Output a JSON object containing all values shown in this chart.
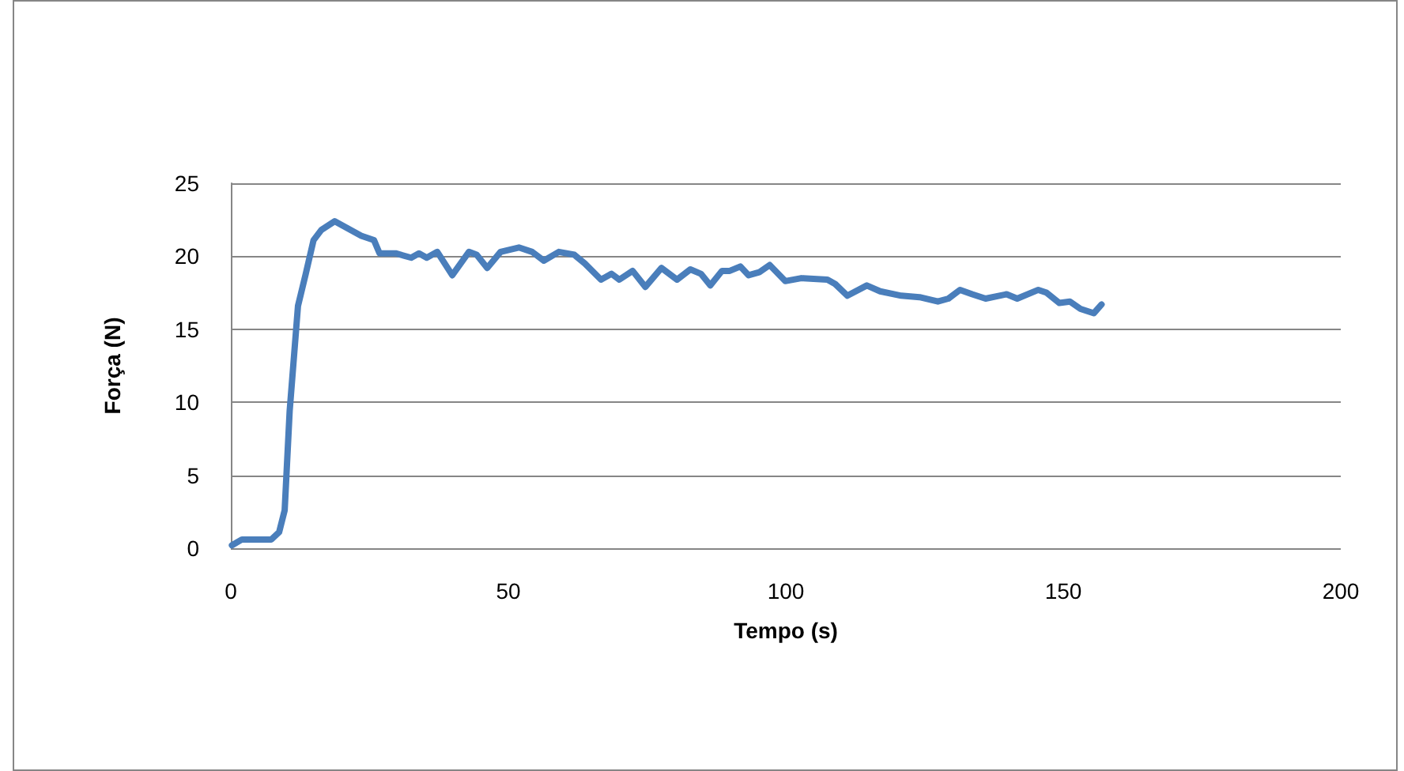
{
  "chart_data": {
    "type": "line",
    "xlabel": "Tempo (s)",
    "ylabel": "Força (N)",
    "xlim": [
      0,
      200
    ],
    "xticks": [
      0,
      50,
      100,
      150,
      200
    ],
    "ylim": [
      0,
      25
    ],
    "yticks": [
      0,
      5,
      10,
      15,
      20,
      25
    ],
    "grid": "y",
    "marker": "none",
    "line_style": "solid",
    "series": [
      {
        "color": "#4a7ebb",
        "x": [
          0.2,
          2,
          7.3,
          8.7,
          9.7,
          10.6,
          12.1,
          13.5,
          14.9,
          16.3,
          18.7,
          21.1,
          23.5,
          25.8,
          26.8,
          29.7,
          32.5,
          33.9,
          35.3,
          37.2,
          39.9,
          42.9,
          44.3,
          46.2,
          48.6,
          51.9,
          54.3,
          56.4,
          59.1,
          61.9,
          63.8,
          66.7,
          68.6,
          70,
          72.4,
          74.7,
          77.6,
          80.4,
          82.8,
          84.7,
          86.4,
          88.5,
          89.9,
          91.8,
          93.3,
          95.2,
          97.1,
          99.9,
          102.8,
          107.5,
          108.9,
          111.1,
          114.6,
          117,
          120.8,
          124.1,
          127.4,
          129.3,
          131.4,
          133.6,
          136,
          139.8,
          141.7,
          145.5,
          147,
          149.3,
          151.2,
          153.1,
          155.5,
          156.9
        ],
        "values": [
          0.2,
          0.6,
          0.6,
          1.1,
          2.6,
          9.4,
          16.6,
          18.8,
          21.1,
          21.8,
          22.4,
          21.9,
          21.4,
          21.1,
          20.2,
          20.2,
          19.9,
          20.2,
          19.9,
          20.3,
          18.7,
          20.3,
          20.1,
          19.2,
          20.3,
          20.6,
          20.3,
          19.7,
          20.3,
          20.1,
          19.5,
          18.4,
          18.8,
          18.4,
          19,
          17.9,
          19.2,
          18.4,
          19.1,
          18.8,
          18,
          19,
          19,
          19.3,
          18.7,
          18.9,
          19.4,
          18.3,
          18.5,
          18.4,
          18.1,
          17.3,
          18,
          17.6,
          17.3,
          17.2,
          16.9,
          17.1,
          17.7,
          17.4,
          17.1,
          17.4,
          17.1,
          17.7,
          17.5,
          16.8,
          16.9,
          16.4,
          16.1,
          16.7
        ]
      }
    ]
  }
}
